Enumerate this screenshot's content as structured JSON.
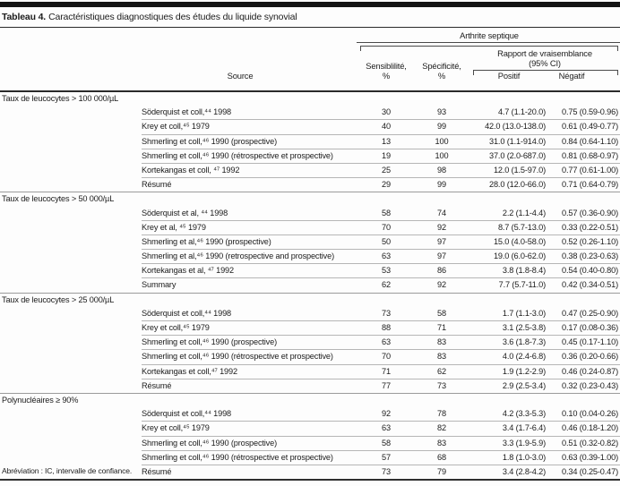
{
  "header": {
    "table_label": "Tableau 4.",
    "table_title": "Caractéristiques diagnostiques des études du liquide synovial",
    "group": "Arthrite septique",
    "subgroup_line1": "Rapport de vraisemblance",
    "subgroup_line2": "(95% CI)",
    "col_source": "Source",
    "col_sens_line1": "Sensiblilité,",
    "col_sens_line2": "%",
    "col_spec_line1": "Spécificité,",
    "col_spec_line2": "%",
    "col_pos": "Positif",
    "col_neg": "Négatif"
  },
  "sections": [
    {
      "title": "Taux de leucocytes > 100 000/µL",
      "rows": [
        {
          "source": "Söderquist et coll,⁴⁴ 1998",
          "sens": "30",
          "spec": "93",
          "pos": "4.7 (1.1-20.0)",
          "neg": "0.75 (0.59-0.96)"
        },
        {
          "source": "Krey et coll,⁴⁵ 1979",
          "sens": "40",
          "spec": "99",
          "pos": "42.0 (13.0-138.0)",
          "neg": "0.61 (0.49-0.77)"
        },
        {
          "source": "Shmerling et coll,⁴⁶ 1990 (prospective)",
          "sens": "13",
          "spec": "100",
          "pos": "31.0 (1.1-914.0)",
          "neg": "0.84 (0.64-1.10)"
        },
        {
          "source": "Shmerling et coll,⁴⁶ 1990 (rétrospective et prospective)",
          "sens": "19",
          "spec": "100",
          "pos": "37.0 (2.0-687.0)",
          "neg": "0.81 (0.68-0.97)"
        },
        {
          "source": "Kortekangas et coll, ⁴⁷ 1992",
          "sens": "25",
          "spec": "98",
          "pos": "12.0 (1.5-97.0)",
          "neg": "0.77 (0.61-1.00)"
        },
        {
          "source": "Résumé",
          "sens": "29",
          "spec": "99",
          "pos": "28.0 (12.0-66.0)",
          "neg": "0.71 (0.64-0.79)"
        }
      ]
    },
    {
      "title": "Taux de leucocytes > 50 000/µL",
      "rows": [
        {
          "source": "Söderquist et al, ⁴⁴ 1998",
          "sens": "58",
          "spec": "74",
          "pos": "2.2 (1.1-4.4)",
          "neg": "0.57 (0.36-0.90)"
        },
        {
          "source": "Krey et al, ⁴⁵ 1979",
          "sens": "70",
          "spec": "92",
          "pos": "8.7 (5.7-13.0)",
          "neg": "0.33 (0.22-0.51)"
        },
        {
          "source": "Shmerling et al,⁴⁶ 1990 (prospective)",
          "sens": "50",
          "spec": "97",
          "pos": "15.0 (4.0-58.0)",
          "neg": "0.52 (0.26-1.10)"
        },
        {
          "source": "Shmerling et al,⁴⁶ 1990 (retrospective and prospective)",
          "sens": "63",
          "spec": "97",
          "pos": "19.0 (6.0-62.0)",
          "neg": "0.38 (0.23-0.63)"
        },
        {
          "source": "Kortekangas et al, ⁴⁷ 1992",
          "sens": "53",
          "spec": "86",
          "pos": "3.8 (1.8-8.4)",
          "neg": "0.54 (0.40-0.80)"
        },
        {
          "source": "Summary",
          "sens": "62",
          "spec": "92",
          "pos": "7.7 (5.7-11.0)",
          "neg": "0.42 (0.34-0.51)"
        }
      ]
    },
    {
      "title": "Taux de leucocytes > 25 000/µL",
      "rows": [
        {
          "source": "Söderquist et coll,⁴⁴ 1998",
          "sens": "73",
          "spec": "58",
          "pos": "1.7 (1.1-3.0)",
          "neg": "0.47 (0.25-0.90)"
        },
        {
          "source": "Krey et coll,⁴⁵ 1979",
          "sens": "88",
          "spec": "71",
          "pos": "3.1 (2.5-3.8)",
          "neg": "0.17 (0.08-0.36)"
        },
        {
          "source": "Shmerling et coll,⁴⁶ 1990 (prospective)",
          "sens": "63",
          "spec": "83",
          "pos": "3.6 (1.8-7.3)",
          "neg": "0.45 (0.17-1.10)"
        },
        {
          "source": "Shmerling et coll,⁴⁶ 1990 (rétrospective et prospective)",
          "sens": "70",
          "spec": "83",
          "pos": "4.0 (2.4-6.8)",
          "neg": "0.36 (0.20-0.66)"
        },
        {
          "source": "Kortekangas et coll,⁴⁷ 1992",
          "sens": "71",
          "spec": "62",
          "pos": "1.9 (1.2-2.9)",
          "neg": "0.46 (0.24-0.87)"
        },
        {
          "source": "Résumé",
          "sens": "77",
          "spec": "73",
          "pos": "2.9 (2.5-3.4)",
          "neg": "0.32 (0.23-0.43)"
        }
      ]
    },
    {
      "title": "Polynucléaires ≥ 90%",
      "rows": [
        {
          "source": "Söderquist et coll,⁴⁴ 1998",
          "sens": "92",
          "spec": "78",
          "pos": "4.2 (3.3-5.3)",
          "neg": "0.10 (0.04-0.26)"
        },
        {
          "source": "Krey et coll,⁴⁵ 1979",
          "sens": "63",
          "spec": "82",
          "pos": "3.4 (1.7-6.4)",
          "neg": "0.46 (0.18-1.20)"
        },
        {
          "source": "Shmerling et coll,⁴⁶ 1990 (prospective)",
          "sens": "58",
          "spec": "83",
          "pos": "3.3 (1.9-5.9)",
          "neg": "0.51 (0.32-0.82)"
        },
        {
          "source": "Shmerling et coll,⁴⁶ 1990 (rétrospective et prospective)",
          "sens": "57",
          "spec": "68",
          "pos": "1.8 (1.0-3.0)",
          "neg": "0.63 (0.39-1.00)"
        },
        {
          "source": "Résumé",
          "sens": "73",
          "spec": "79",
          "pos": "3.4 (2.8-4.2)",
          "neg": "0.34 (0.25-0.47)"
        }
      ]
    }
  ],
  "footnote": "Abréviation : IC, intervalle de confiance."
}
